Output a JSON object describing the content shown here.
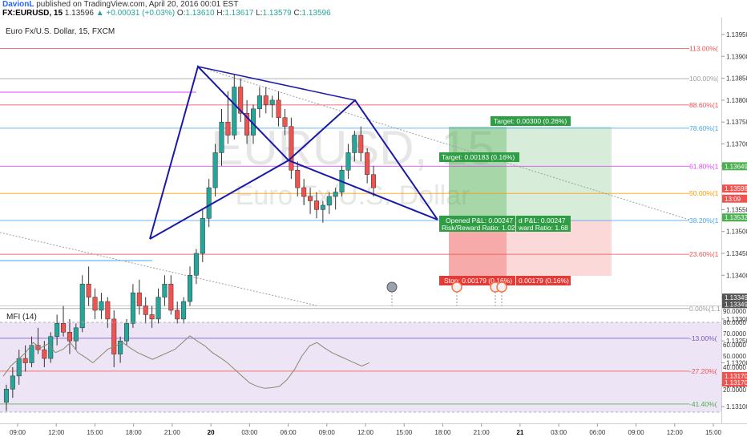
{
  "header": {
    "author": "DavionL",
    "published": "published on TradingView.com, April 20, 2016 00:01 EST",
    "symbol": "FX:EURUSD, 15",
    "last": "1.13596",
    "change": "▲ +0.00031 (+0.03%)",
    "open_label": "O:",
    "open": "1.13610",
    "high_label": "H:",
    "high": "1.13617",
    "low_label": "L:",
    "low": "1.13579",
    "close_label": "C:",
    "close": "1.13596"
  },
  "chart": {
    "title": "Euro Fx/U.S. Dollar, 15, FXCM",
    "watermark_symbol": "EURUSD, 15",
    "watermark_name": "Euro Fx/U.S. Dollar",
    "price_ticks": [
      "1.13950",
      "1.13900",
      "1.13850",
      "1.13800",
      "1.13750",
      "1.13700",
      "1.13650",
      "1.13550",
      "1.13500",
      "1.13450",
      "1.13400",
      "1.13350",
      "1.13300",
      "1.13250",
      "1.13200",
      "1.13150",
      "1.13100"
    ],
    "price_tags": [
      {
        "label": "1.13649",
        "price": 1.13649,
        "color": "#4caf50"
      },
      {
        "label": "1.13598",
        "price": 1.13598,
        "color": "#ef5350"
      },
      {
        "label": "13:09",
        "price": 1.13575,
        "color": "#ef5350"
      },
      {
        "label": "1.13532",
        "price": 1.13532,
        "color": "#4caf50"
      },
      {
        "label": "1.13349",
        "price": 1.13349,
        "color": "#555555"
      },
      {
        "label": "1.13349",
        "price": 1.13334,
        "color": "#555555"
      },
      {
        "label": "1.13170",
        "price": 1.1317,
        "color": "#ef5350"
      },
      {
        "label": "1.13170",
        "price": 1.13155,
        "color": "#ef5350"
      }
    ],
    "time_ticks": [
      "09:00",
      "12:00",
      "15:00",
      "18:00",
      "21:00",
      "20",
      "03:00",
      "06:00",
      "09:00",
      "12:00",
      "15:00",
      "18:00",
      "21:00",
      "21",
      "03:00",
      "06:00",
      "09:00",
      "12:00",
      "15:00"
    ],
    "fib_levels": [
      {
        "label": "113.00%(",
        "price": 1.13918,
        "color": "#ef5350"
      },
      {
        "label": "100.00%(",
        "price": 1.13849,
        "color": "#9e9e9e"
      },
      {
        "label": "88.60%(1",
        "price": 1.13789,
        "color": "#ef5350"
      },
      {
        "label": "78.60%(1",
        "price": 1.13736,
        "color": "#42a5f5"
      },
      {
        "label": "61.80%(1",
        "price": 1.13649,
        "color": "#e040fb"
      },
      {
        "label": "50.00%(1",
        "price": 1.13587,
        "color": "#ff9800"
      },
      {
        "label": "38.20%(1",
        "price": 1.13525,
        "color": "#42a5f5"
      },
      {
        "label": "23.60%(1",
        "price": 1.13448,
        "color": "#ef5350"
      },
      {
        "label": "0.00%(1.1",
        "price": 1.13324,
        "color": "#9e9e9e"
      },
      {
        "label": "-13.00%(",
        "price": 1.13256,
        "color": "#7e57c2"
      },
      {
        "label": "-27.20%(",
        "price": 1.13181,
        "color": "#ef5350"
      },
      {
        "label": "-41.40%(",
        "price": 1.13106,
        "color": "#4caf50"
      }
    ],
    "target_label_1": "Target: 0.00300 (0.26%)",
    "target_label_2": "Target: 0.00183 (0.16%)",
    "opened_pl": "Opened P&L: 0.00247",
    "opened_pl_2": "d P&L: 0.00247",
    "rr_1": "Risk/Reward Ratio: 1.02",
    "rr_2": "ward Ratio: 1.68",
    "stop_label": "Stop: 0.00179 (0.16%)",
    "stop_label_2": "0.00179 (0.16%)"
  },
  "mfi": {
    "label": "MFI (14)",
    "ticks": [
      "90.0000",
      "80.0000",
      "70.0000",
      "60.0000",
      "50.0000",
      "40.0000",
      "30.0000",
      "20.0000"
    ]
  },
  "chart_data": {
    "type": "candlestick",
    "symbol": "FX:EURUSD",
    "interval": "15",
    "candles_approx": [
      [
        1.1311,
        1.1315,
        1.1309,
        1.1314
      ],
      [
        1.1314,
        1.1319,
        1.1312,
        1.1317
      ],
      [
        1.1317,
        1.1323,
        1.1315,
        1.1321
      ],
      [
        1.1321,
        1.1324,
        1.1318,
        1.132
      ],
      [
        1.132,
        1.1326,
        1.1319,
        1.1324
      ],
      [
        1.1324,
        1.1328,
        1.1322,
        1.1323
      ],
      [
        1.1323,
        1.1325,
        1.1319,
        1.1321
      ],
      [
        1.1321,
        1.1327,
        1.132,
        1.1326
      ],
      [
        1.1326,
        1.1331,
        1.1324,
        1.1329
      ],
      [
        1.1329,
        1.1333,
        1.1326,
        1.1327
      ],
      [
        1.1327,
        1.133,
        1.1322,
        1.1325
      ],
      [
        1.1325,
        1.1329,
        1.1323,
        1.1328
      ],
      [
        1.1328,
        1.134,
        1.1327,
        1.1338
      ],
      [
        1.1338,
        1.1342,
        1.1333,
        1.1335
      ],
      [
        1.1335,
        1.1337,
        1.133,
        1.1332
      ],
      [
        1.1332,
        1.1336,
        1.133,
        1.1334
      ],
      [
        1.1334,
        1.1335,
        1.1328,
        1.133
      ],
      [
        1.133,
        1.1332,
        1.1319,
        1.1322
      ],
      [
        1.1322,
        1.1326,
        1.132,
        1.1325
      ],
      [
        1.1325,
        1.133,
        1.1324,
        1.1329
      ],
      [
        1.1329,
        1.1338,
        1.1328,
        1.1336
      ],
      [
        1.1336,
        1.1339,
        1.1331,
        1.1333
      ],
      [
        1.1333,
        1.1335,
        1.1329,
        1.1331
      ],
      [
        1.1331,
        1.1333,
        1.1328,
        1.133
      ],
      [
        1.133,
        1.1337,
        1.1329,
        1.1335
      ],
      [
        1.1335,
        1.134,
        1.1333,
        1.1338
      ],
      [
        1.1338,
        1.134,
        1.1331,
        1.1332
      ],
      [
        1.1332,
        1.1334,
        1.1329,
        1.133
      ],
      [
        1.133,
        1.1335,
        1.1329,
        1.1334
      ],
      [
        1.1334,
        1.1342,
        1.1333,
        1.134
      ],
      [
        1.134,
        1.1346,
        1.1338,
        1.1345
      ],
      [
        1.1345,
        1.1355,
        1.1343,
        1.1353
      ],
      [
        1.1353,
        1.1362,
        1.1351,
        1.136
      ],
      [
        1.136,
        1.137,
        1.1358,
        1.1368
      ],
      [
        1.1368,
        1.1378,
        1.1365,
        1.1375
      ],
      [
        1.1375,
        1.1382,
        1.137,
        1.1372
      ],
      [
        1.1372,
        1.1386,
        1.1371,
        1.1383
      ],
      [
        1.1383,
        1.1385,
        1.1375,
        1.1377
      ],
      [
        1.1377,
        1.138,
        1.137,
        1.1372
      ],
      [
        1.1372,
        1.1379,
        1.137,
        1.1378
      ],
      [
        1.1378,
        1.1383,
        1.1376,
        1.1381
      ],
      [
        1.1381,
        1.1383,
        1.1377,
        1.1379
      ],
      [
        1.1379,
        1.1381,
        1.1376,
        1.138
      ],
      [
        1.138,
        1.1382,
        1.1374,
        1.1376
      ],
      [
        1.1376,
        1.1378,
        1.1372,
        1.1374
      ],
      [
        1.1374,
        1.1376,
        1.1362,
        1.1364
      ],
      [
        1.1364,
        1.1366,
        1.1358,
        1.136
      ],
      [
        1.136,
        1.1362,
        1.1356,
        1.1358
      ],
      [
        1.1358,
        1.136,
        1.1354,
        1.1357
      ],
      [
        1.1357,
        1.1359,
        1.1353,
        1.1355
      ],
      [
        1.1355,
        1.1357,
        1.1352,
        1.1356
      ],
      [
        1.1356,
        1.1359,
        1.1354,
        1.1358
      ],
      [
        1.1358,
        1.136,
        1.1355,
        1.1359
      ],
      [
        1.1359,
        1.1365,
        1.1358,
        1.1364
      ],
      [
        1.1364,
        1.137,
        1.1362,
        1.1368
      ],
      [
        1.1368,
        1.1373,
        1.1366,
        1.1372
      ],
      [
        1.1372,
        1.1374,
        1.1366,
        1.1368
      ],
      [
        1.1368,
        1.1369,
        1.1361,
        1.1363
      ],
      [
        1.1363,
        1.1365,
        1.1358,
        1.136
      ]
    ]
  }
}
